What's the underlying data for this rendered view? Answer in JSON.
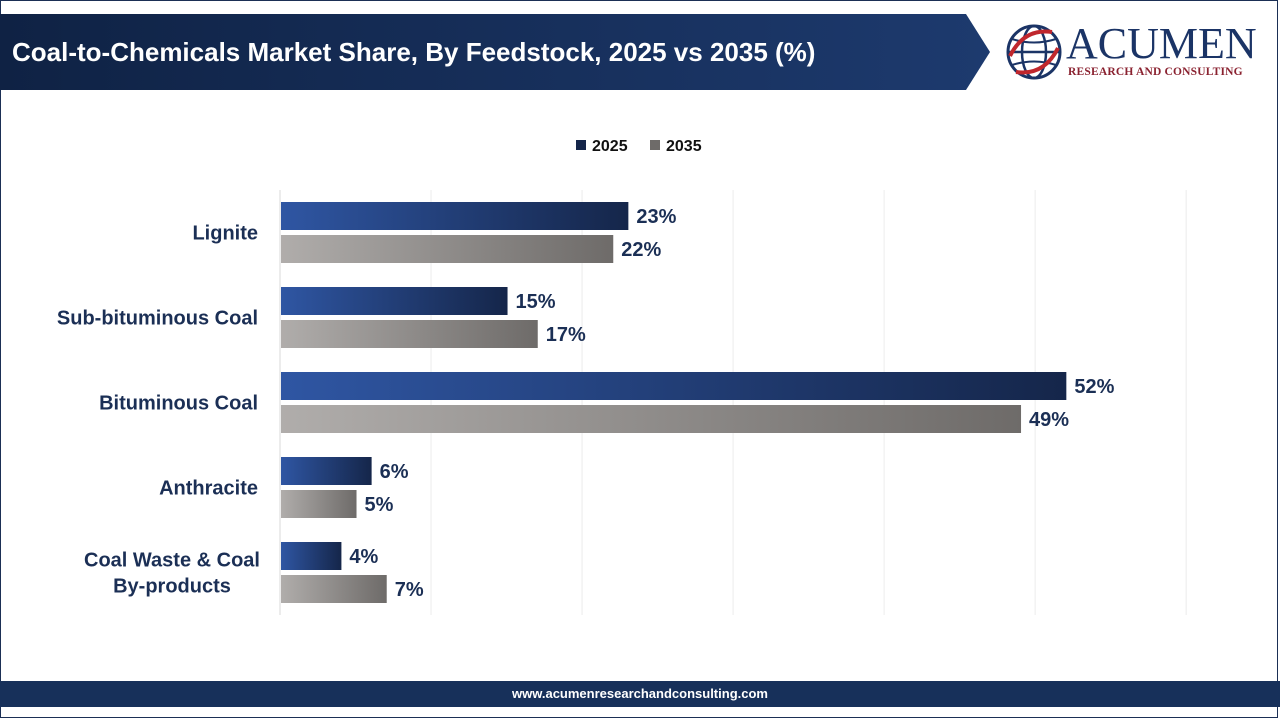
{
  "header": {
    "title": "Coal-to-Chemicals Market Share, By Feedstock, 2025 vs 2035 (%)"
  },
  "logo": {
    "name": "ACUMEN",
    "tagline": "RESEARCH AND CONSULTING"
  },
  "footer": {
    "url": "www.acumenresearchandconsulting.com"
  },
  "colors": {
    "brand_navy": "#17305a",
    "series_2025_start": "#2f56a3",
    "series_2025_end": "#15264a",
    "series_2035_start": "#b0adab",
    "series_2035_end": "#6e6b69",
    "label_text": "#1b2f55"
  },
  "chart_data": {
    "type": "bar",
    "orientation": "horizontal",
    "title": "",
    "xlabel": "",
    "ylabel": "",
    "xlim": [
      0,
      60
    ],
    "grid": true,
    "legend_position": "top",
    "categories": [
      "Lignite",
      "Sub-bituminous Coal",
      "Bituminous Coal",
      "Anthracite",
      "Coal Waste & Coal By-products"
    ],
    "category_lines": [
      [
        "Lignite"
      ],
      [
        "Sub-bituminous Coal"
      ],
      [
        "Bituminous Coal"
      ],
      [
        "Anthracite"
      ],
      [
        "Coal Waste & Coal",
        "By-products"
      ]
    ],
    "series": [
      {
        "name": "2025",
        "values": [
          23,
          15,
          52,
          6,
          4
        ],
        "labels": [
          "23%",
          "15%",
          "52%",
          "6%",
          "4%"
        ]
      },
      {
        "name": "2035",
        "values": [
          22,
          17,
          49,
          5,
          7
        ],
        "labels": [
          "22%",
          "17%",
          "49%",
          "5%",
          "7%"
        ]
      }
    ]
  }
}
